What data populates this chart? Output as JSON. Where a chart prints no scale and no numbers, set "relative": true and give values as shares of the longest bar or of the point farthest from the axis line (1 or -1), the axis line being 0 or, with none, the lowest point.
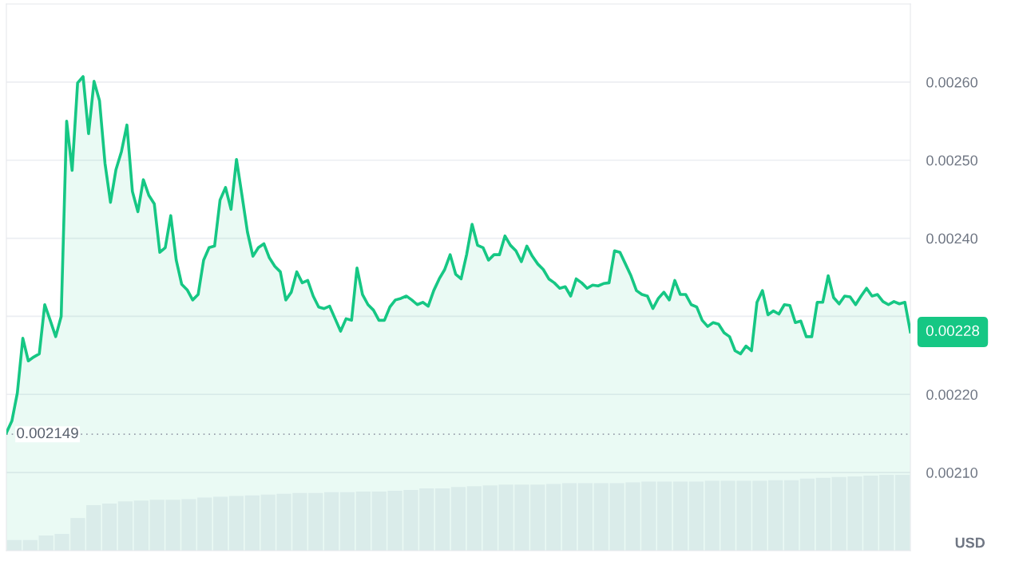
{
  "chart_data": [
    {
      "type": "area",
      "color": "#16c784",
      "ylim": [
        0.002,
        0.0027
      ],
      "yticks": [
        {
          "value": 0.0021,
          "label": "0.00210"
        },
        {
          "value": 0.0022,
          "label": "0.00220"
        },
        {
          "value": 0.0023,
          "label": null
        },
        {
          "value": 0.0024,
          "label": "0.00240"
        },
        {
          "value": 0.0025,
          "label": "0.00250"
        },
        {
          "value": 0.0026,
          "label": "0.00260"
        }
      ],
      "grid": "y",
      "tick_labels": "y",
      "ylabel": "USD",
      "ref_lines": [
        {
          "axis": "y",
          "value": 0.002149,
          "label": "0.002149",
          "color": "#9aa1ad",
          "line_style": "dotted"
        }
      ],
      "annotations": [
        "0.00228"
      ],
      "values": [
        0.002151,
        0.002166,
        0.002202,
        0.002272,
        0.002243,
        0.002248,
        0.002252,
        0.002315,
        0.002295,
        0.002274,
        0.0023,
        0.00255,
        0.002487,
        0.002599,
        0.002607,
        0.002534,
        0.002601,
        0.002576,
        0.002496,
        0.002446,
        0.002488,
        0.002511,
        0.002545,
        0.00246,
        0.002434,
        0.002475,
        0.002455,
        0.002444,
        0.002382,
        0.002388,
        0.002429,
        0.002372,
        0.002341,
        0.002334,
        0.002321,
        0.002328,
        0.002372,
        0.002388,
        0.00239,
        0.002449,
        0.002465,
        0.002437,
        0.002501,
        0.002455,
        0.002408,
        0.002377,
        0.002388,
        0.002393,
        0.002375,
        0.002364,
        0.002357,
        0.002321,
        0.002331,
        0.002357,
        0.002343,
        0.002346,
        0.002326,
        0.002312,
        0.00231,
        0.002313,
        0.002297,
        0.002281,
        0.002297,
        0.002295,
        0.002362,
        0.002328,
        0.002315,
        0.002308,
        0.002295,
        0.002295,
        0.002312,
        0.002321,
        0.002323,
        0.002326,
        0.002321,
        0.002315,
        0.002318,
        0.002313,
        0.002333,
        0.002348,
        0.00236,
        0.002379,
        0.002354,
        0.002348,
        0.002379,
        0.002418,
        0.002391,
        0.002388,
        0.002372,
        0.002379,
        0.002379,
        0.002403,
        0.002391,
        0.002384,
        0.00237,
        0.00239,
        0.002377,
        0.002367,
        0.00236,
        0.002348,
        0.002343,
        0.002336,
        0.002338,
        0.002326,
        0.002348,
        0.002343,
        0.002336,
        0.00234,
        0.002339,
        0.002342,
        0.002343,
        0.002384,
        0.002382,
        0.002367,
        0.002352,
        0.002333,
        0.002328,
        0.002326,
        0.00231,
        0.002323,
        0.002331,
        0.002321,
        0.002346,
        0.002328,
        0.002328,
        0.002315,
        0.002312,
        0.002295,
        0.002287,
        0.002292,
        0.00229,
        0.002279,
        0.002274,
        0.002256,
        0.002252,
        0.002262,
        0.002256,
        0.002318,
        0.002333,
        0.002302,
        0.002307,
        0.002303,
        0.002315,
        0.002314,
        0.002292,
        0.002294,
        0.002274,
        0.002274,
        0.002318,
        0.002318,
        0.002352,
        0.002324,
        0.002316,
        0.002326,
        0.002325,
        0.002315,
        0.002326,
        0.002336,
        0.002326,
        0.002328,
        0.002319,
        0.002315,
        0.002319,
        0.002316,
        0.002318,
        0.00228
      ]
    },
    {
      "type": "bar",
      "relative": true,
      "color": "#eef0f5",
      "tick_labels": false,
      "values": [
        0.14,
        0.14,
        0.2,
        0.22,
        0.43,
        0.6,
        0.62,
        0.65,
        0.66,
        0.67,
        0.67,
        0.68,
        0.7,
        0.71,
        0.72,
        0.73,
        0.74,
        0.75,
        0.76,
        0.76,
        0.77,
        0.77,
        0.78,
        0.78,
        0.79,
        0.8,
        0.82,
        0.82,
        0.84,
        0.85,
        0.86,
        0.87,
        0.87,
        0.87,
        0.88,
        0.89,
        0.89,
        0.89,
        0.89,
        0.9,
        0.91,
        0.91,
        0.91,
        0.91,
        0.92,
        0.92,
        0.92,
        0.92,
        0.93,
        0.93,
        0.95,
        0.96,
        0.97,
        0.98,
        0.99,
        1.0,
        1.0
      ]
    }
  ]
}
